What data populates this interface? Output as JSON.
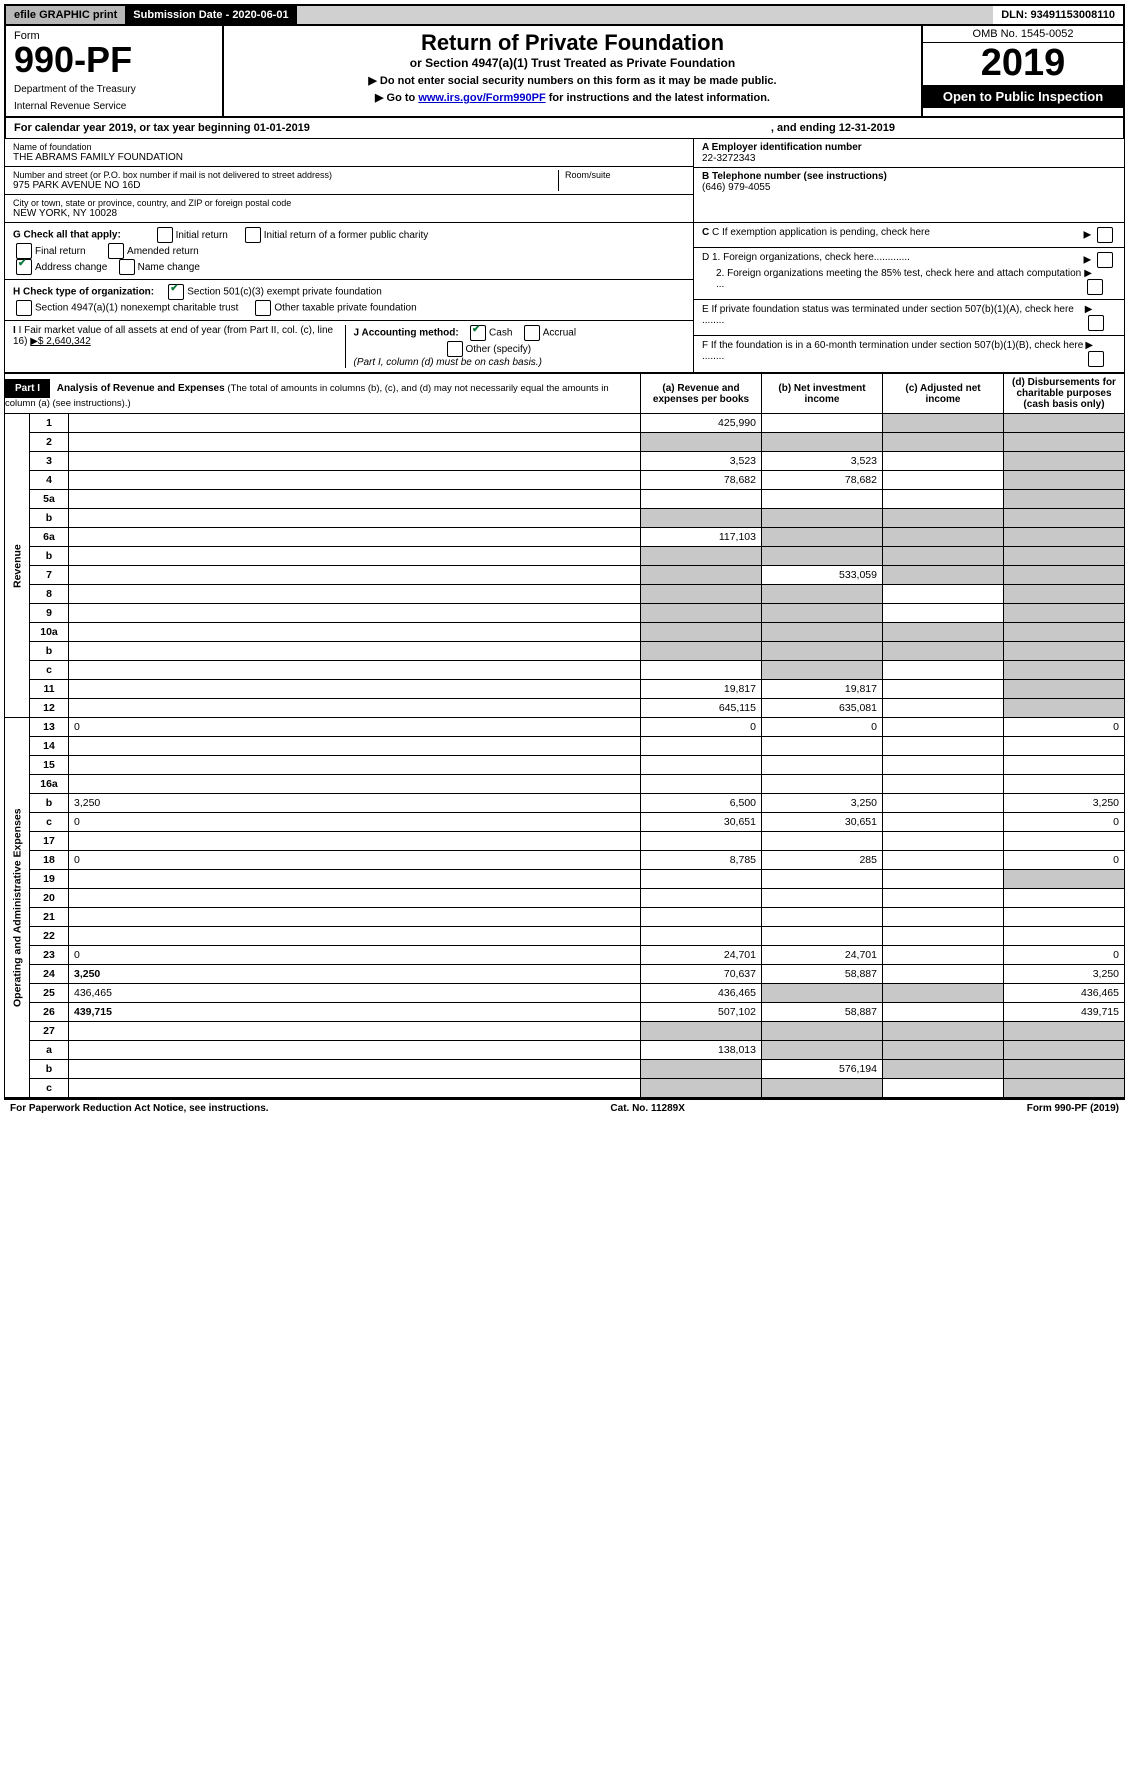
{
  "topbar": {
    "efile": "efile GRAPHIC print",
    "submission": "Submission Date - 2020-06-01",
    "dln": "DLN: 93491153008110"
  },
  "header": {
    "form_label": "Form",
    "form_number": "990-PF",
    "dept1": "Department of the Treasury",
    "dept2": "Internal Revenue Service",
    "title": "Return of Private Foundation",
    "subtitle": "or Section 4947(a)(1) Trust Treated as Private Foundation",
    "note1": "▶ Do not enter social security numbers on this form as it may be made public.",
    "note2_pre": "▶ Go to ",
    "note2_link": "www.irs.gov/Form990PF",
    "note2_post": " for instructions and the latest information.",
    "omb": "OMB No. 1545-0052",
    "year": "2019",
    "open": "Open to Public Inspection"
  },
  "calendar": {
    "text": "For calendar year 2019, or tax year beginning 01-01-2019",
    "ending": ", and ending 12-31-2019"
  },
  "entity": {
    "name_lbl": "Name of foundation",
    "name": "THE ABRAMS FAMILY FOUNDATION",
    "addr_lbl": "Number and street (or P.O. box number if mail is not delivered to street address)",
    "addr": "975 PARK AVENUE NO 16D",
    "room_lbl": "Room/suite",
    "city_lbl": "City or town, state or province, country, and ZIP or foreign postal code",
    "city": "NEW YORK, NY  10028",
    "ein_lbl": "A Employer identification number",
    "ein": "22-3272343",
    "phone_lbl": "B Telephone number (see instructions)",
    "phone": "(646) 979-4055",
    "c_lbl": "C If exemption application is pending, check here",
    "d1": "D 1. Foreign organizations, check here.............",
    "d2": "2. Foreign organizations meeting the 85% test, check here and attach computation ...",
    "e": "E  If private foundation status was terminated under section 507(b)(1)(A), check here ........",
    "f": "F  If the foundation is in a 60-month termination under section 507(b)(1)(B), check here ........"
  },
  "g": {
    "label": "G Check all that apply:",
    "initial": "Initial return",
    "initial_former": "Initial return of a former public charity",
    "final": "Final return",
    "amended": "Amended return",
    "address": "Address change",
    "name": "Name change"
  },
  "h": {
    "label": "H Check type of organization:",
    "opt1": "Section 501(c)(3) exempt private foundation",
    "opt2": "Section 4947(a)(1) nonexempt charitable trust",
    "opt3": "Other taxable private foundation"
  },
  "i": {
    "label": "I Fair market value of all assets at end of year (from Part II, col. (c), line 16)",
    "value": "▶$  2,640,342"
  },
  "j": {
    "label": "J Accounting method:",
    "cash": "Cash",
    "accrual": "Accrual",
    "other": "Other (specify)",
    "note": "(Part I, column (d) must be on cash basis.)"
  },
  "part1": {
    "label": "Part I",
    "title": "Analysis of Revenue and Expenses",
    "titlenote": "(The total of amounts in columns (b), (c), and (d) may not necessarily equal the amounts in column (a) (see instructions).)",
    "col_a": "(a)   Revenue and expenses per books",
    "col_b": "(b)  Net investment income",
    "col_c": "(c)  Adjusted net income",
    "col_d": "(d)  Disbursements for charitable purposes (cash basis only)"
  },
  "sidelabels": {
    "revenue": "Revenue",
    "expenses": "Operating and Administrative Expenses"
  },
  "rows": [
    {
      "n": "1",
      "d": "",
      "a": "425,990",
      "b": "",
      "c": "",
      "shade_c": true,
      "shade_d": true
    },
    {
      "n": "2",
      "d": "",
      "a": "",
      "b": "",
      "c": "",
      "shade_a": true,
      "shade_b": true,
      "shade_c": true,
      "shade_d": true,
      "bold": false
    },
    {
      "n": "3",
      "d": "",
      "a": "3,523",
      "b": "3,523",
      "c": "",
      "shade_d": true
    },
    {
      "n": "4",
      "d": "",
      "a": "78,682",
      "b": "78,682",
      "c": "",
      "shade_d": true
    },
    {
      "n": "5a",
      "d": "",
      "a": "",
      "b": "",
      "c": "",
      "shade_d": true
    },
    {
      "n": "b",
      "d": "",
      "a": "",
      "b": "",
      "c": "",
      "shade_a": true,
      "shade_b": true,
      "shade_c": true,
      "shade_d": true
    },
    {
      "n": "6a",
      "d": "",
      "a": "117,103",
      "b": "",
      "c": "",
      "shade_b": true,
      "shade_c": true,
      "shade_d": true
    },
    {
      "n": "b",
      "d": "",
      "a": "",
      "b": "",
      "c": "",
      "shade_a": true,
      "shade_b": true,
      "shade_c": true,
      "shade_d": true
    },
    {
      "n": "7",
      "d": "",
      "a": "",
      "b": "533,059",
      "c": "",
      "shade_a": true,
      "shade_c": true,
      "shade_d": true
    },
    {
      "n": "8",
      "d": "",
      "a": "",
      "b": "",
      "c": "",
      "shade_a": true,
      "shade_b": true,
      "shade_d": true
    },
    {
      "n": "9",
      "d": "",
      "a": "",
      "b": "",
      "c": "",
      "shade_a": true,
      "shade_b": true,
      "shade_d": true
    },
    {
      "n": "10a",
      "d": "",
      "a": "",
      "b": "",
      "c": "",
      "shade_a": true,
      "shade_b": true,
      "shade_c": true,
      "shade_d": true
    },
    {
      "n": "b",
      "d": "",
      "a": "",
      "b": "",
      "c": "",
      "shade_a": true,
      "shade_b": true,
      "shade_c": true,
      "shade_d": true
    },
    {
      "n": "c",
      "d": "",
      "a": "",
      "b": "",
      "c": "",
      "shade_b": true,
      "shade_d": true
    },
    {
      "n": "11",
      "d": "",
      "a": "19,817",
      "b": "19,817",
      "c": "",
      "shade_d": true
    },
    {
      "n": "12",
      "d": "",
      "a": "645,115",
      "b": "635,081",
      "c": "",
      "bold": true,
      "shade_d": true
    },
    {
      "n": "13",
      "d": "0",
      "a": "0",
      "b": "0",
      "c": ""
    },
    {
      "n": "14",
      "d": "",
      "a": "",
      "b": "",
      "c": ""
    },
    {
      "n": "15",
      "d": "",
      "a": "",
      "b": "",
      "c": ""
    },
    {
      "n": "16a",
      "d": "",
      "a": "",
      "b": "",
      "c": ""
    },
    {
      "n": "b",
      "d": "3,250",
      "a": "6,500",
      "b": "3,250",
      "c": ""
    },
    {
      "n": "c",
      "d": "0",
      "a": "30,651",
      "b": "30,651",
      "c": ""
    },
    {
      "n": "17",
      "d": "",
      "a": "",
      "b": "",
      "c": ""
    },
    {
      "n": "18",
      "d": "0",
      "a": "8,785",
      "b": "285",
      "c": ""
    },
    {
      "n": "19",
      "d": "",
      "a": "",
      "b": "",
      "c": "",
      "shade_d": true
    },
    {
      "n": "20",
      "d": "",
      "a": "",
      "b": "",
      "c": ""
    },
    {
      "n": "21",
      "d": "",
      "a": "",
      "b": "",
      "c": ""
    },
    {
      "n": "22",
      "d": "",
      "a": "",
      "b": "",
      "c": ""
    },
    {
      "n": "23",
      "d": "0",
      "a": "24,701",
      "b": "24,701",
      "c": ""
    },
    {
      "n": "24",
      "d": "3,250",
      "a": "70,637",
      "b": "58,887",
      "c": "",
      "bold": true
    },
    {
      "n": "25",
      "d": "436,465",
      "a": "436,465",
      "b": "",
      "c": "",
      "shade_b": true,
      "shade_c": true
    },
    {
      "n": "26",
      "d": "439,715",
      "a": "507,102",
      "b": "58,887",
      "c": "",
      "bold": true
    },
    {
      "n": "27",
      "d": "",
      "a": "",
      "b": "",
      "c": "",
      "shade_a": true,
      "shade_b": true,
      "shade_c": true,
      "shade_d": true
    },
    {
      "n": "a",
      "d": "",
      "a": "138,013",
      "b": "",
      "c": "",
      "bold": true,
      "shade_b": true,
      "shade_c": true,
      "shade_d": true
    },
    {
      "n": "b",
      "d": "",
      "a": "",
      "b": "576,194",
      "c": "",
      "bold": true,
      "shade_a": true,
      "shade_c": true,
      "shade_d": true
    },
    {
      "n": "c",
      "d": "",
      "a": "",
      "b": "",
      "c": "",
      "bold": true,
      "shade_a": true,
      "shade_b": true,
      "shade_d": true
    }
  ],
  "footer": {
    "left": "For Paperwork Reduction Act Notice, see instructions.",
    "mid": "Cat. No. 11289X",
    "right": "Form 990-PF (2019)"
  }
}
